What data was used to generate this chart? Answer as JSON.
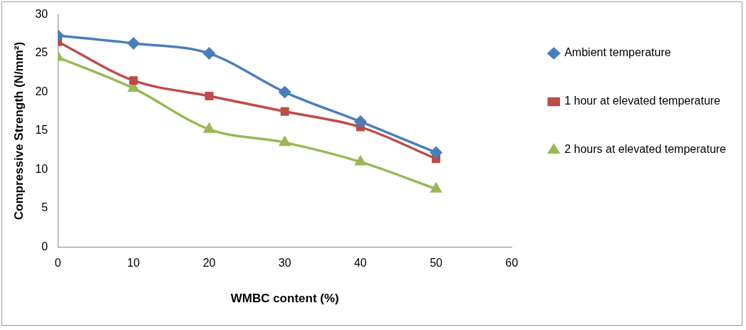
{
  "chart_data": {
    "type": "line",
    "xlabel": "WMBC content (%)",
    "ylabel": "Compressive Strength (N/mm²)",
    "x": [
      0,
      10,
      20,
      30,
      40,
      50
    ],
    "xlim": [
      0,
      60
    ],
    "xticks": [
      0,
      10,
      20,
      30,
      40,
      50,
      60
    ],
    "ylim": [
      0,
      30
    ],
    "yticks": [
      0,
      5,
      10,
      15,
      20,
      25,
      30
    ],
    "grid": false,
    "legend": "right",
    "series": [
      {
        "name": "Ambient temperature",
        "color": "#4a7ebb",
        "marker": "diamond",
        "values": [
          27.3,
          26.3,
          25.0,
          20.0,
          16.2,
          12.2
        ]
      },
      {
        "name": "1 hour at elevated temperature",
        "color": "#be4b48",
        "marker": "square",
        "values": [
          26.5,
          21.5,
          19.5,
          17.5,
          15.5,
          11.4
        ]
      },
      {
        "name": "2 hours at elevated temperature",
        "color": "#98b954",
        "marker": "triangle",
        "values": [
          24.5,
          20.5,
          15.2,
          13.5,
          11.0,
          7.5
        ]
      }
    ]
  }
}
